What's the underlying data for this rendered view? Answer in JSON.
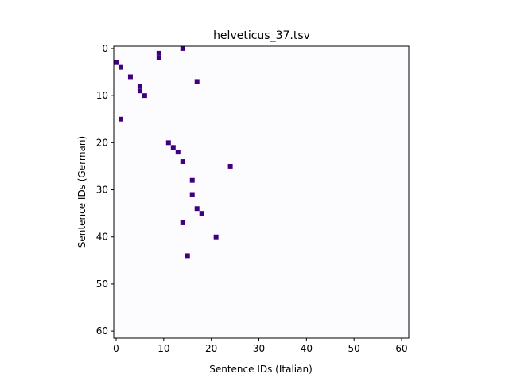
{
  "chart_data": {
    "type": "heatmap",
    "title": "helveticus_37.tsv",
    "xlabel": "Sentence IDs (Italian)",
    "ylabel": "Sentence IDs (German)",
    "xlim": [
      -0.5,
      61.5
    ],
    "ylim": [
      61.5,
      -0.5
    ],
    "xticks": [
      0,
      10,
      20,
      30,
      40,
      50,
      60
    ],
    "yticks": [
      0,
      10,
      20,
      30,
      40,
      50,
      60
    ],
    "grid": false,
    "colors": {
      "background": "#fcfbfd",
      "cell": "#3f007d",
      "axes": "#000000"
    },
    "cells": [
      {
        "x": 14,
        "y": 0
      },
      {
        "x": 9,
        "y": 1
      },
      {
        "x": 9,
        "y": 2
      },
      {
        "x": 0,
        "y": 3
      },
      {
        "x": 1,
        "y": 4
      },
      {
        "x": 3,
        "y": 6
      },
      {
        "x": 17,
        "y": 7
      },
      {
        "x": 5,
        "y": 8
      },
      {
        "x": 5,
        "y": 9
      },
      {
        "x": 6,
        "y": 10
      },
      {
        "x": 1,
        "y": 15
      },
      {
        "x": 11,
        "y": 20
      },
      {
        "x": 12,
        "y": 21
      },
      {
        "x": 13,
        "y": 22
      },
      {
        "x": 14,
        "y": 24
      },
      {
        "x": 24,
        "y": 25
      },
      {
        "x": 16,
        "y": 28
      },
      {
        "x": 16,
        "y": 31
      },
      {
        "x": 17,
        "y": 34
      },
      {
        "x": 18,
        "y": 35
      },
      {
        "x": 14,
        "y": 37
      },
      {
        "x": 21,
        "y": 40
      },
      {
        "x": 15,
        "y": 44
      }
    ]
  }
}
